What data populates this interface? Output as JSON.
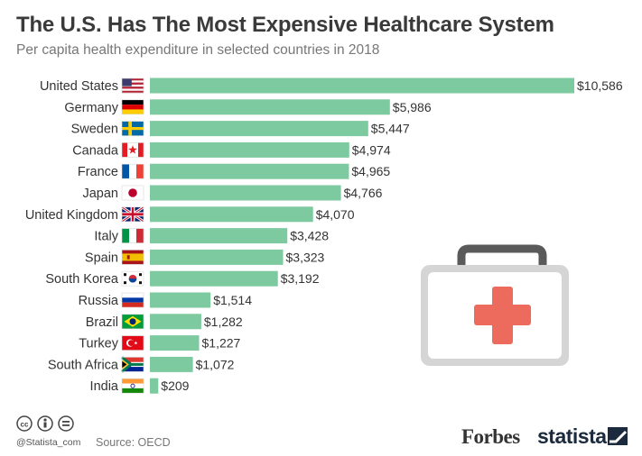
{
  "header": {
    "title": "The U.S. Has The Most Expensive Healthcare System",
    "subtitle": "Per capita health expenditure in selected countries in 2018"
  },
  "chart_data": {
    "type": "bar",
    "orientation": "horizontal",
    "title": "The U.S. Has The Most Expensive Healthcare System",
    "subtitle": "Per capita health expenditure in selected countries in 2018",
    "xlabel": "",
    "ylabel": "",
    "xlim": [
      0,
      10586
    ],
    "grid": false,
    "bar_color": "#7dcaa0",
    "categories": [
      "United States",
      "Germany",
      "Sweden",
      "Canada",
      "France",
      "Japan",
      "United Kingdom",
      "Italy",
      "Spain",
      "South Korea",
      "Russia",
      "Brazil",
      "Turkey",
      "South Africa",
      "India"
    ],
    "values": [
      10586,
      5986,
      5447,
      4974,
      4965,
      4766,
      4070,
      3428,
      3323,
      3192,
      1514,
      1282,
      1227,
      1072,
      209
    ],
    "value_labels": [
      "$10,586",
      "$5,986",
      "$5,447",
      "$4,974",
      "$4,965",
      "$4,766",
      "$4,070",
      "$3,428",
      "$3,323",
      "$3,192",
      "$1,514",
      "$1,282",
      "$1,227",
      "$1,072",
      "$209"
    ],
    "flags": [
      "us",
      "de",
      "se",
      "ca",
      "fr",
      "jp",
      "gb",
      "it",
      "es",
      "kr",
      "ru",
      "br",
      "tr",
      "za",
      "in"
    ]
  },
  "footer": {
    "handle": "@Statista_com",
    "source": "Source: OECD",
    "forbes": "Forbes",
    "statista": "statista",
    "license_icons": [
      "cc-icon",
      "attribution-icon",
      "no-derivatives-icon"
    ]
  },
  "illustration": {
    "name": "first-aid-kit",
    "cross_color": "#ec6b5d"
  }
}
